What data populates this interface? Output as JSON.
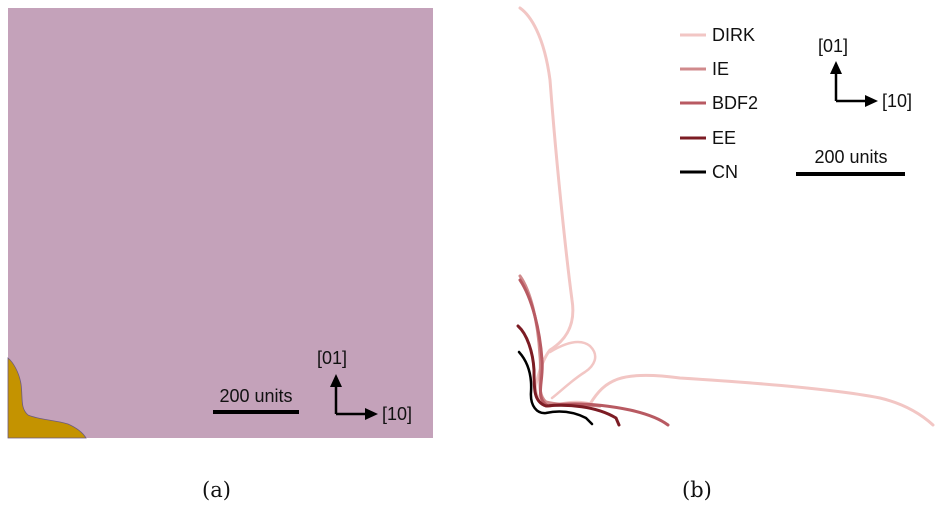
{
  "panel_a": {
    "caption": "(a)",
    "scale_label": "200 units",
    "axis_up_label": "[01]",
    "axis_right_label": "[10]",
    "colors": {
      "matrix": "#c4a2ba",
      "precipitate": "#c49300",
      "interface": "#6c5a80"
    }
  },
  "panel_b": {
    "caption": "(b)",
    "scale_label": "200 units",
    "axis_up_label": "[01]",
    "axis_right_label": "[10]",
    "legend": [
      {
        "name": "DIRK",
        "color": "#f2c6c4"
      },
      {
        "name": "IE",
        "color": "#d08a8c"
      },
      {
        "name": "BDF2",
        "color": "#b85a62"
      },
      {
        "name": "EE",
        "color": "#7c1c24"
      },
      {
        "name": "CN",
        "color": "#000000"
      }
    ]
  }
}
